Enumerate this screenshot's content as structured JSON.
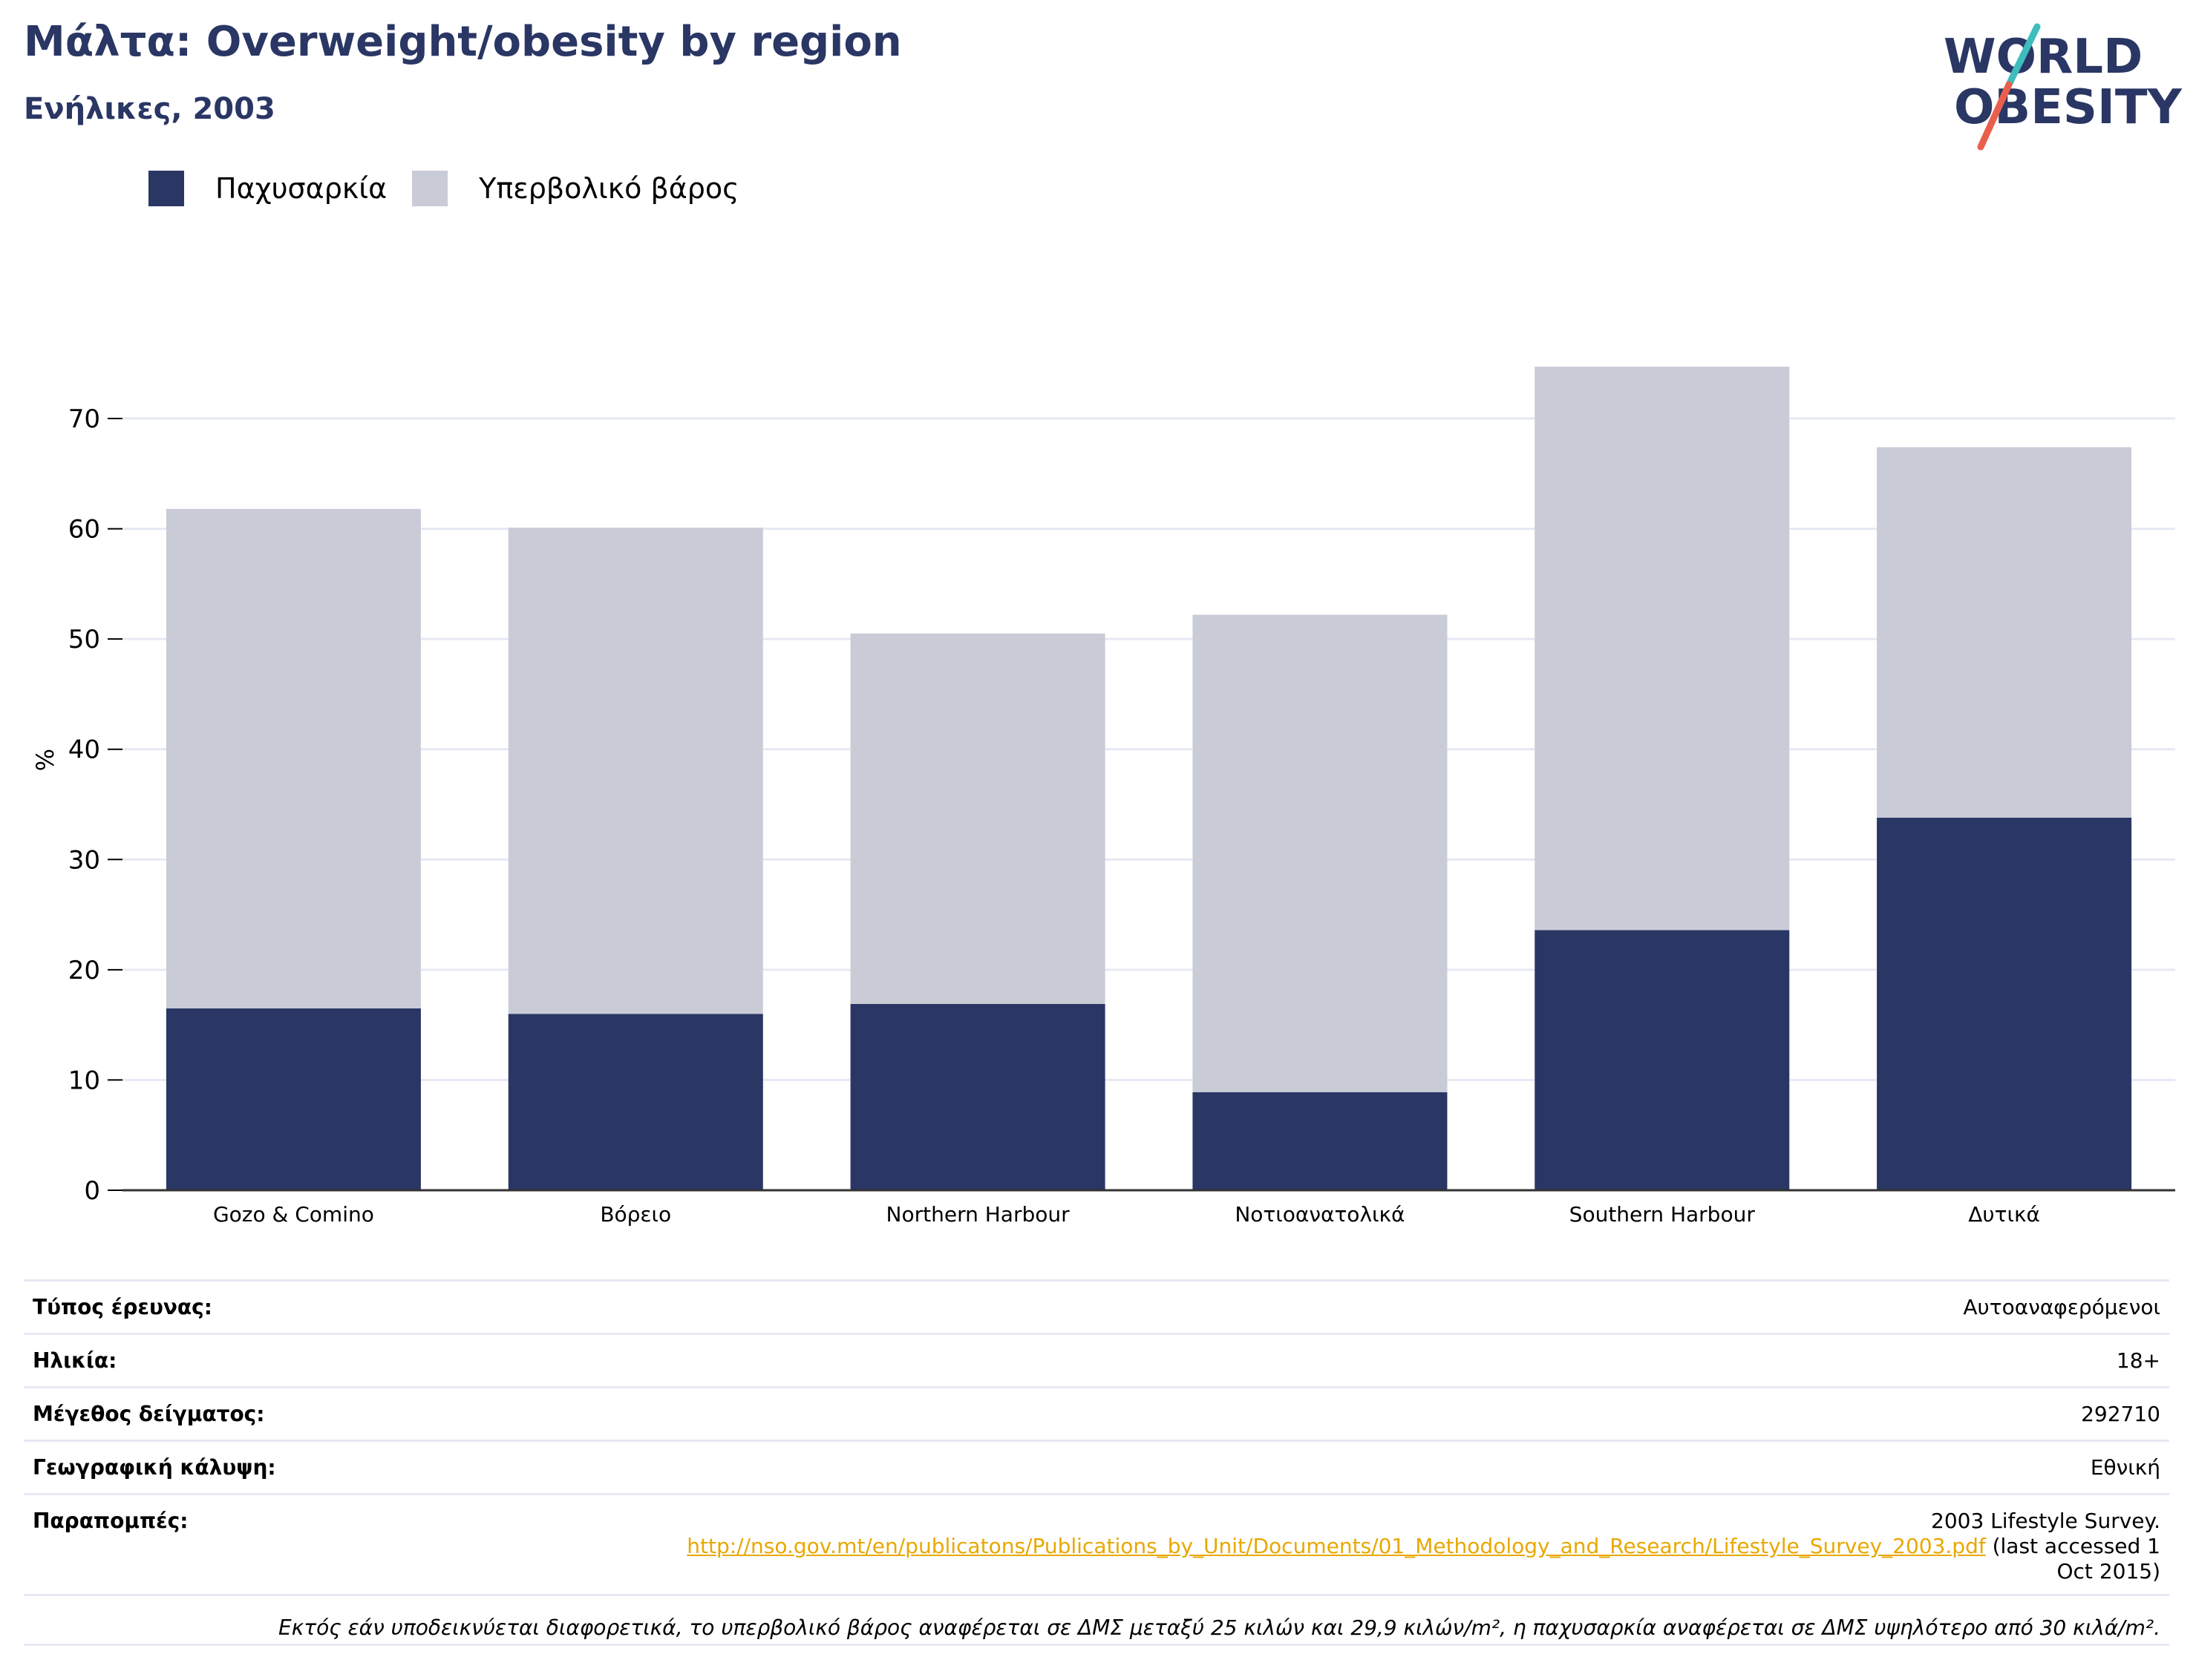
{
  "header": {
    "title": "Μάλτα: Overweight/obesity by region",
    "subtitle": "Ενήλικες, 2003"
  },
  "logo": {
    "line1": "WORLD",
    "line2": "OBESITY",
    "colors": {
      "text": "#2a3664",
      "slash_top": "#3dbdbd",
      "slash_bottom": "#e8604c"
    }
  },
  "colors": {
    "obesity": "#2a3664",
    "overweight": "#c9cbd7",
    "axis": "#000000",
    "grid": "#e6e9f4"
  },
  "legend": {
    "position": "top-left"
  },
  "chart_data": {
    "type": "bar",
    "stacked": true,
    "categories": [
      "Gozo & Comino",
      "Βόρειο",
      "Northern Harbour",
      "Νοτιοανατολικά",
      "Southern Harbour",
      "Δυτικά"
    ],
    "series": [
      {
        "name": "Παχυσαρκία",
        "values": [
          16.5,
          16.0,
          16.9,
          8.9,
          23.6,
          33.8
        ]
      },
      {
        "name": "Υπερβολικό βάρος",
        "values": [
          45.3,
          44.1,
          33.6,
          43.3,
          51.1,
          33.6
        ]
      }
    ],
    "title": "Μάλτα: Overweight/obesity by region",
    "subtitle": "Ενήλικες, 2003",
    "xlabel": "",
    "ylabel": "%",
    "ylim": [
      0,
      80
    ],
    "yticks": [
      0,
      10,
      20,
      30,
      40,
      50,
      60,
      70
    ],
    "grid": true
  },
  "info": {
    "rows": [
      {
        "key": "Τύπος έρευνας:",
        "value": "Αυτοαναφερόμενοι"
      },
      {
        "key": "Ηλικία:",
        "value": "18+"
      },
      {
        "key": "Μέγεθος δείγματος:",
        "value": "292710"
      },
      {
        "key": "Γεωγραφική κάλυψη:",
        "value": "Εθνική"
      }
    ],
    "references": {
      "key": "Παραπομπές:",
      "line1": "2003 Lifestyle Survey.",
      "link": "http://nso.gov.mt/en/publicatons/Publications_by_Unit/Documents/01_Methodology_and_Research/Lifestyle_Survey_2003.pdf",
      "after_link": " (last accessed 1",
      "line3": "Oct 2015)"
    },
    "note": "Εκτός εάν υποδεικνύεται διαφορετικά, το υπερβολικό βάρος αναφέρεται σε ΔΜΣ μεταξύ 25 κιλών και 29,9 κιλών/m², η παχυσαρκία αναφέρεται σε ΔΜΣ υψηλότερο από 30 κιλά/m²."
  }
}
